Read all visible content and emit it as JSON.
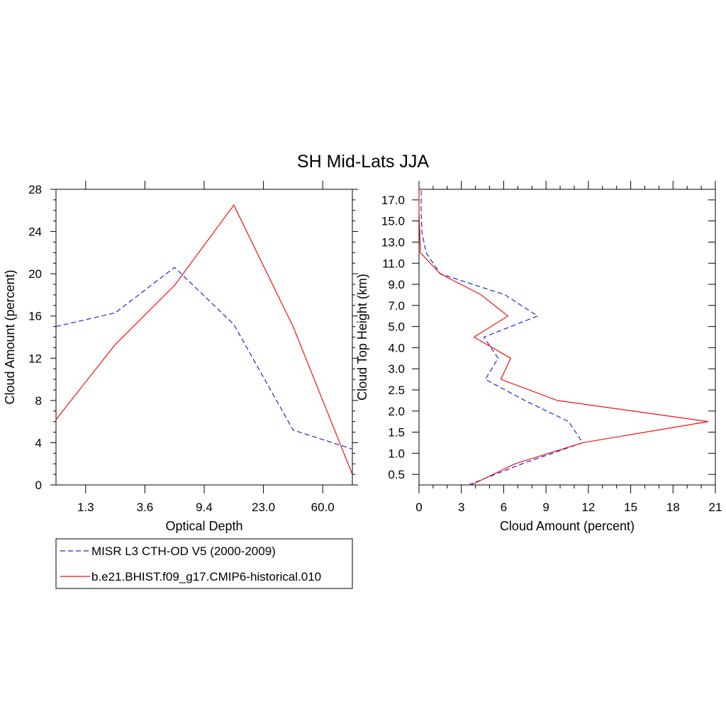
{
  "title": "SH Mid-Lats JJA",
  "colors": {
    "obs": "#2222dd",
    "model": "#ee1111",
    "axis": "#000000"
  },
  "legend": {
    "placement": "below-left",
    "entries": [
      {
        "label": "MISR L3 CTH-OD V5 (2000-2009)",
        "color": "#2222dd",
        "dashed": true
      },
      {
        "label": "b.e21.BHIST.f09_g17.CMIP6-historical.010",
        "color": "#ee1111",
        "dashed": false
      }
    ]
  },
  "chart_data": [
    {
      "type": "line",
      "xlabel": "Optical Depth",
      "ylabel": "Cloud Amount (percent)",
      "ylim": [
        0,
        28
      ],
      "y_ticks": [
        "0",
        "4",
        "8",
        "12",
        "16",
        "20",
        "24",
        "28"
      ],
      "x_ticks": [
        "1.3",
        "3.6",
        "9.4",
        "23.0",
        "60.0"
      ],
      "x_tick_index": [
        0.5,
        1.5,
        2.5,
        3.5,
        4.5
      ],
      "xlim_index": [
        0,
        5
      ],
      "grid": false,
      "series": [
        {
          "name": "MISR L3 CTH-OD V5 (2000-2009)",
          "dashed": true,
          "x_index": [
            0,
            1,
            2,
            3,
            4,
            5
          ],
          "values": [
            15.0,
            16.3,
            20.6,
            15.2,
            5.2,
            3.4
          ]
        },
        {
          "name": "b.e21.BHIST.f09_g17.CMIP6-historical.010",
          "dashed": false,
          "x_index": [
            0,
            1,
            2,
            3,
            4,
            5
          ],
          "values": [
            6.2,
            13.3,
            18.9,
            26.5,
            15.0,
            1.0
          ]
        }
      ]
    },
    {
      "type": "line",
      "xlabel": "Cloud Amount (percent)",
      "ylabel": "Cloud Top Height (km)",
      "xlim": [
        0,
        21
      ],
      "x_ticks": [
        "0",
        "3",
        "6",
        "9",
        "12",
        "15",
        "18",
        "21"
      ],
      "y_ticks": [
        "0.5",
        "1.0",
        "1.5",
        "2.0",
        "2.5",
        "3.0",
        "4.0",
        "5.0",
        "7.0",
        "9.0",
        "11.0",
        "13.0",
        "15.0",
        "17.0"
      ],
      "ylim_index": [
        0,
        14
      ],
      "grid": false,
      "series": [
        {
          "name": "MISR L3 CTH-OD V5 (2000-2009)",
          "dashed": true,
          "y_index": [
            0,
            1,
            2,
            3,
            4,
            5,
            6,
            7,
            8,
            9,
            10,
            11,
            12,
            13,
            14
          ],
          "values": [
            3.5,
            7.3,
            11.6,
            10.6,
            7.5,
            4.7,
            5.6,
            4.6,
            8.4,
            6.1,
            1.5,
            0.5,
            0.2,
            0.15,
            0.15
          ]
        },
        {
          "name": "b.e21.BHIST.f09_g17.CMIP6-historical.010",
          "dashed": false,
          "y_index": [
            0,
            1,
            2,
            3,
            4,
            5,
            6,
            7,
            8,
            9,
            10,
            11,
            12,
            13,
            14
          ],
          "values": [
            3.7,
            6.8,
            11.6,
            20.5,
            9.8,
            5.8,
            6.5,
            3.9,
            6.3,
            4.4,
            1.5,
            0.1,
            0.05,
            0.0,
            0.0
          ]
        }
      ]
    }
  ]
}
